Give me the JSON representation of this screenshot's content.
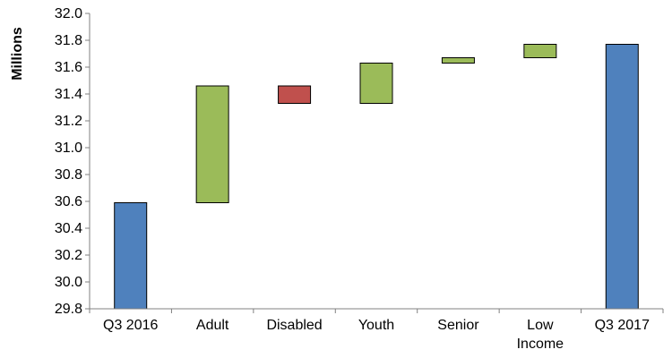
{
  "chart_data": {
    "type": "bar",
    "subtype": "waterfall",
    "ylabel": "Millions",
    "ylim": [
      29.8,
      32.0
    ],
    "ytick_step": 0.2,
    "categories": [
      "Q3 2016",
      "Adult",
      "Disabled",
      "Youth",
      "Senior",
      "Low Income",
      "Q3 2017"
    ],
    "category_label_lines": [
      [
        "Q3 2016"
      ],
      [
        "Adult"
      ],
      [
        "Disabled"
      ],
      [
        "Youth"
      ],
      [
        "Senior"
      ],
      [
        "Low",
        "Income"
      ],
      [
        "Q3 2017"
      ]
    ],
    "bars": [
      {
        "category": "Q3 2016",
        "kind": "total",
        "start": 29.8,
        "end": 30.59
      },
      {
        "category": "Adult",
        "kind": "increase",
        "start": 30.59,
        "end": 31.46
      },
      {
        "category": "Disabled",
        "kind": "decrease",
        "start": 31.46,
        "end": 31.33
      },
      {
        "category": "Youth",
        "kind": "increase",
        "start": 31.33,
        "end": 31.63
      },
      {
        "category": "Senior",
        "kind": "increase",
        "start": 31.63,
        "end": 31.67
      },
      {
        "category": "Low Income",
        "kind": "increase",
        "start": 31.67,
        "end": 31.77
      },
      {
        "category": "Q3 2017",
        "kind": "total",
        "start": 29.8,
        "end": 31.77
      }
    ],
    "colors": {
      "total": "#4f81bd",
      "increase": "#9bbb59",
      "decrease": "#c0504d"
    },
    "grid": false,
    "legend": "none"
  }
}
